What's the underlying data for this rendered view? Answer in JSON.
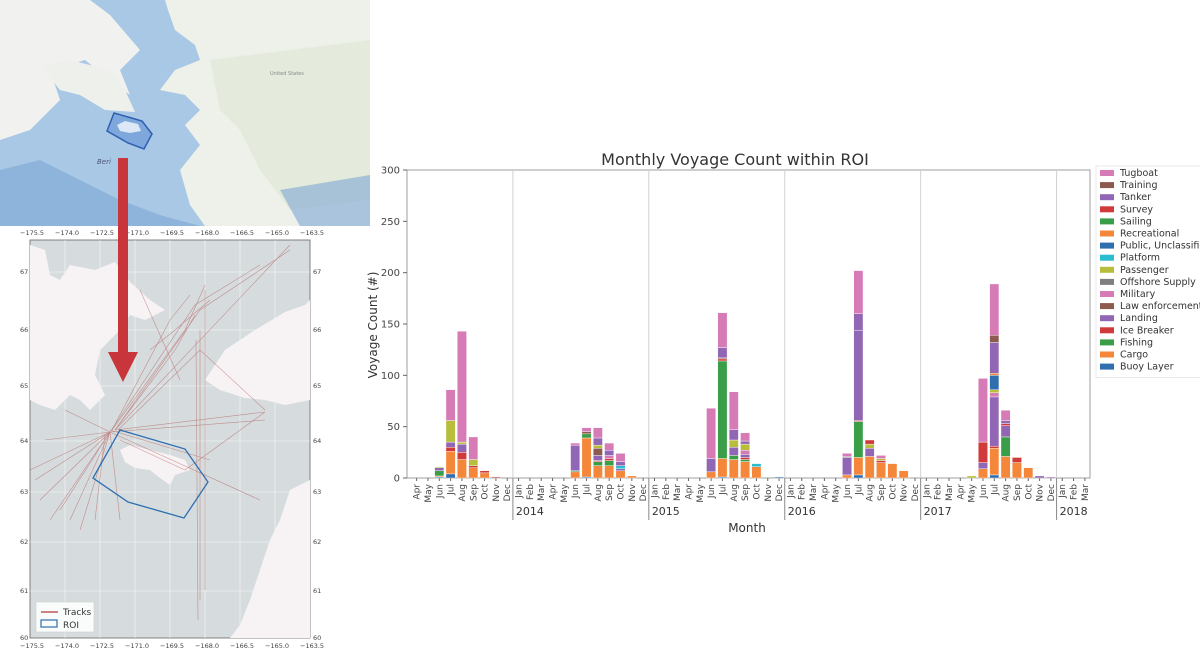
{
  "maps": {
    "top_map": {
      "labels": {
        "country": "United States",
        "sea": "Bering Sea"
      },
      "x_ticks": [
        "−175.5",
        "−174.0",
        "−172.5",
        "−171.0",
        "−169.5",
        "−168.0",
        "−166.5",
        "−165.0",
        "−163.5"
      ]
    },
    "track_map": {
      "x_ticks": [
        "−175.5",
        "−174.0",
        "−172.5",
        "−171.0",
        "−169.5",
        "−168.0",
        "−166.5",
        "−165.0",
        "−163.5"
      ],
      "y_ticks": [
        "67",
        "66",
        "65",
        "64",
        "63",
        "62",
        "61",
        "60"
      ],
      "legend": [
        {
          "label": "Tracks",
          "color": "#b03a3a",
          "kind": "line"
        },
        {
          "label": "ROI",
          "color": "#2e6fb0",
          "kind": "box"
        }
      ]
    },
    "arrow_color": "#c8353a"
  },
  "chart_data": {
    "type": "bar",
    "stacked": true,
    "title": "Monthly Voyage Count within ROI",
    "xlabel": "Month",
    "ylabel": "Voyage Count (#)",
    "ylim": [
      0,
      300
    ],
    "yticks": [
      0,
      50,
      100,
      150,
      200,
      250,
      300
    ],
    "grid": "vertical year separators",
    "legend_position": "right",
    "categories": [
      "Apr",
      "May",
      "Jun",
      "Jul",
      "Aug",
      "Sep",
      "Oct",
      "Nov",
      "Dec",
      "Jan",
      "Feb",
      "Mar",
      "Apr",
      "May",
      "Jun",
      "Jul",
      "Aug",
      "Sep",
      "Oct",
      "Nov",
      "Dec",
      "Jan",
      "Feb",
      "Mar",
      "Apr",
      "May",
      "Jun",
      "Jul",
      "Aug",
      "Sep",
      "Oct",
      "Nov",
      "Dec",
      "Jan",
      "Feb",
      "Mar",
      "Apr",
      "May",
      "Jun",
      "Jul",
      "Aug",
      "Sep",
      "Oct",
      "Nov",
      "Dec",
      "Jan",
      "Feb",
      "Mar",
      "Apr",
      "May",
      "Jun",
      "Jul",
      "Aug",
      "Sep",
      "Oct",
      "Nov",
      "Dec",
      "Jan",
      "Feb",
      "Mar"
    ],
    "year_labels": [
      {
        "label": "2014",
        "start_index": 9
      },
      {
        "label": "2015",
        "start_index": 21
      },
      {
        "label": "2016",
        "start_index": 33
      },
      {
        "label": "2017",
        "start_index": 45
      },
      {
        "label": "2018",
        "start_index": 57
      }
    ],
    "legend": [
      "Tugboat",
      "Training",
      "Tanker",
      "Survey",
      "Sailing",
      "Recreational",
      "Public, Unclassified",
      "Platform",
      "Passenger",
      "Offshore Supply",
      "Military",
      "Law enforcement",
      "Landing",
      "Ice Breaker",
      "Fishing",
      "Cargo",
      "Buoy Layer"
    ],
    "colors": {
      "Buoy Layer": "#2f6fad",
      "Cargo": "#f5873a",
      "Fishing": "#3a9d48",
      "Ice Breaker": "#d03a3a",
      "Landing": "#9167b5",
      "Law enforcement": "#8c5a4e",
      "Military": "#d67bb6",
      "Offshore Supply": "#7f7f7f",
      "Passenger": "#b8bd3c",
      "Platform": "#2bbcd0",
      "Public, Unclassified": "#2f6fad",
      "Recreational": "#f5873a",
      "Sailing": "#3a9d48",
      "Survey": "#d03a3a",
      "Tanker": "#9167b5",
      "Training": "#8c5a4e",
      "Tugboat": "#d67bb6"
    },
    "stack_order": [
      "Buoy Layer",
      "Cargo",
      "Fishing",
      "Ice Breaker",
      "Landing",
      "Law enforcement",
      "Military",
      "Offshore Supply",
      "Passenger",
      "Platform",
      "Public, Unclassified",
      "Recreational",
      "Sailing",
      "Survey",
      "Tanker",
      "Training",
      "Tugboat"
    ],
    "series": [
      {
        "name": "Buoy Layer",
        "values": [
          0,
          0,
          1,
          4,
          0,
          0,
          0,
          0,
          0,
          0,
          0,
          0,
          0,
          0,
          0,
          1,
          0,
          0,
          0,
          0,
          0,
          0,
          0,
          0,
          0,
          0,
          0,
          1,
          0,
          0,
          0,
          0,
          1,
          0,
          0,
          0,
          0,
          0,
          0,
          3,
          0,
          0,
          0,
          0,
          0,
          0,
          0,
          0,
          0,
          0,
          0,
          3,
          0,
          0,
          0,
          0,
          0,
          0,
          0,
          0
        ]
      },
      {
        "name": "Cargo",
        "values": [
          0,
          0,
          1,
          22,
          18,
          10,
          5,
          0,
          0,
          0,
          0,
          0,
          0,
          0,
          6,
          38,
          12,
          12,
          7,
          2,
          0,
          0,
          0,
          0,
          0,
          0,
          6,
          18,
          18,
          16,
          11,
          0,
          0,
          0,
          0,
          0,
          0,
          0,
          3,
          17,
          21,
          15,
          14,
          7,
          0,
          0,
          0,
          0,
          0,
          0,
          9,
          26,
          21,
          15,
          10,
          0,
          0,
          0,
          0,
          0
        ]
      },
      {
        "name": "Fishing",
        "values": [
          0,
          0,
          5,
          0,
          0,
          0,
          0,
          0,
          0,
          0,
          0,
          0,
          0,
          0,
          1,
          4,
          4,
          5,
          0,
          0,
          0,
          0,
          0,
          0,
          0,
          0,
          0,
          95,
          4,
          2,
          0,
          0,
          0,
          0,
          0,
          0,
          0,
          0,
          0,
          35,
          0,
          0,
          0,
          0,
          0,
          0,
          0,
          0,
          0,
          0,
          0,
          0,
          19,
          0,
          0,
          0,
          0,
          0,
          0,
          0
        ]
      },
      {
        "name": "Ice Breaker",
        "values": [
          0,
          0,
          0,
          4,
          7,
          2,
          2,
          1,
          0,
          0,
          0,
          0,
          0,
          0,
          0,
          0,
          1,
          2,
          0,
          0,
          0,
          0,
          0,
          0,
          0,
          0,
          0,
          2,
          0,
          2,
          0,
          0,
          0,
          0,
          0,
          0,
          0,
          0,
          0,
          1,
          0,
          2,
          0,
          0,
          0,
          0,
          0,
          0,
          0,
          0,
          0,
          2,
          0,
          0,
          0,
          0,
          0,
          0,
          0,
          0
        ]
      },
      {
        "name": "Landing",
        "values": [
          0,
          0,
          3,
          5,
          8,
          0,
          0,
          0,
          0,
          0,
          0,
          0,
          0,
          0,
          25,
          0,
          5,
          0,
          2,
          0,
          0,
          0,
          0,
          0,
          0,
          0,
          13,
          0,
          8,
          3,
          0,
          0,
          0,
          0,
          0,
          0,
          0,
          0,
          17,
          88,
          8,
          0,
          0,
          0,
          0,
          0,
          0,
          0,
          0,
          0,
          6,
          48,
          11,
          0,
          0,
          2,
          1,
          0,
          0,
          0
        ]
      },
      {
        "name": "Law enforcement",
        "values": [
          0,
          0,
          0,
          0,
          0,
          0,
          0,
          0,
          0,
          0,
          0,
          0,
          0,
          0,
          0,
          2,
          7,
          0,
          0,
          0,
          0,
          0,
          0,
          0,
          0,
          0,
          0,
          1,
          0,
          0,
          0,
          0,
          0,
          0,
          0,
          0,
          0,
          0,
          0,
          0,
          0,
          0,
          0,
          0,
          0,
          0,
          0,
          0,
          0,
          0,
          0,
          0,
          0,
          0,
          0,
          0,
          0,
          0,
          0,
          0
        ]
      },
      {
        "name": "Military",
        "values": [
          0,
          0,
          0,
          0,
          0,
          0,
          0,
          0,
          0,
          0,
          0,
          0,
          0,
          0,
          0,
          0,
          0,
          3,
          0,
          0,
          0,
          0,
          0,
          0,
          0,
          0,
          0,
          0,
          0,
          4,
          0,
          0,
          0,
          0,
          0,
          0,
          0,
          0,
          0,
          0,
          0,
          0,
          0,
          0,
          0,
          0,
          0,
          0,
          0,
          0,
          0,
          4,
          0,
          0,
          0,
          0,
          0,
          0,
          0,
          0
        ]
      },
      {
        "name": "Offshore Supply",
        "values": [
          0,
          0,
          0,
          0,
          0,
          0,
          0,
          0,
          0,
          0,
          0,
          0,
          0,
          0,
          0,
          0,
          0,
          0,
          0,
          0,
          0,
          0,
          0,
          0,
          0,
          0,
          0,
          0,
          0,
          0,
          0,
          0,
          0,
          0,
          0,
          0,
          0,
          0,
          1,
          0,
          0,
          0,
          0,
          0,
          0,
          0,
          0,
          0,
          0,
          0,
          0,
          0,
          0,
          0,
          0,
          0,
          0,
          0,
          0,
          0
        ]
      },
      {
        "name": "Passenger",
        "values": [
          0,
          0,
          1,
          21,
          2,
          6,
          0,
          0,
          0,
          0,
          0,
          0,
          0,
          0,
          0,
          0,
          3,
          0,
          0,
          0,
          0,
          0,
          0,
          0,
          0,
          0,
          0,
          0,
          7,
          6,
          0,
          0,
          0,
          0,
          0,
          0,
          0,
          0,
          0,
          0,
          4,
          2,
          0,
          0,
          0,
          0,
          0,
          0,
          0,
          2,
          0,
          3,
          0,
          0,
          0,
          0,
          0,
          0,
          0,
          0
        ]
      },
      {
        "name": "Platform",
        "values": [
          0,
          0,
          0,
          0,
          0,
          0,
          0,
          0,
          0,
          0,
          0,
          0,
          0,
          0,
          0,
          0,
          0,
          0,
          3,
          0,
          0,
          0,
          0,
          0,
          0,
          0,
          0,
          0,
          0,
          0,
          3,
          0,
          0,
          0,
          0,
          0,
          0,
          0,
          0,
          0,
          0,
          0,
          0,
          0,
          0,
          0,
          0,
          0,
          0,
          0,
          0,
          0,
          0,
          0,
          0,
          0,
          0,
          0,
          0,
          0
        ]
      },
      {
        "name": "Public, Unclassified",
        "values": [
          0,
          0,
          0,
          0,
          0,
          0,
          0,
          0,
          0,
          0,
          0,
          0,
          0,
          0,
          0,
          0,
          0,
          0,
          0,
          0,
          0,
          0,
          0,
          0,
          0,
          0,
          0,
          0,
          0,
          0,
          0,
          0,
          0,
          0,
          0,
          0,
          0,
          0,
          0,
          0,
          0,
          0,
          0,
          0,
          0,
          0,
          0,
          0,
          0,
          0,
          0,
          14,
          0,
          0,
          0,
          0,
          0,
          0,
          0,
          0
        ]
      },
      {
        "name": "Recreational",
        "values": [
          0,
          0,
          0,
          0,
          0,
          0,
          0,
          0,
          0,
          0,
          0,
          0,
          0,
          0,
          0,
          0,
          0,
          0,
          0,
          0,
          0,
          0,
          0,
          0,
          0,
          0,
          0,
          0,
          0,
          0,
          0,
          0,
          0,
          0,
          0,
          0,
          0,
          0,
          0,
          0,
          0,
          0,
          0,
          0,
          0,
          0,
          0,
          0,
          0,
          0,
          0,
          2,
          0,
          0,
          0,
          0,
          0,
          0,
          0,
          0
        ]
      },
      {
        "name": "Sailing",
        "values": [
          0,
          0,
          0,
          0,
          0,
          0,
          0,
          0,
          0,
          0,
          0,
          0,
          0,
          0,
          0,
          0,
          0,
          0,
          0,
          0,
          0,
          0,
          0,
          0,
          0,
          0,
          0,
          0,
          0,
          0,
          0,
          0,
          0,
          0,
          0,
          0,
          0,
          0,
          0,
          0,
          0,
          0,
          0,
          0,
          0,
          0,
          0,
          0,
          0,
          0,
          0,
          0,
          0,
          0,
          0,
          0,
          0,
          0,
          0,
          0
        ]
      },
      {
        "name": "Survey",
        "values": [
          0,
          0,
          0,
          0,
          0,
          0,
          0,
          0,
          0,
          0,
          0,
          0,
          0,
          0,
          0,
          0,
          0,
          0,
          0,
          0,
          0,
          0,
          0,
          0,
          0,
          0,
          0,
          0,
          0,
          0,
          0,
          0,
          0,
          0,
          0,
          0,
          0,
          0,
          0,
          0,
          4,
          0,
          0,
          0,
          0,
          0,
          0,
          0,
          0,
          0,
          20,
          0,
          2,
          5,
          0,
          0,
          0,
          0,
          0,
          0
        ]
      },
      {
        "name": "Tanker",
        "values": [
          0,
          0,
          0,
          0,
          0,
          0,
          0,
          0,
          0,
          0,
          0,
          0,
          0,
          0,
          0,
          0,
          7,
          5,
          4,
          0,
          0,
          0,
          0,
          0,
          0,
          0,
          0,
          10,
          10,
          3,
          0,
          0,
          0,
          0,
          0,
          0,
          0,
          0,
          0,
          16,
          0,
          0,
          0,
          0,
          0,
          0,
          0,
          0,
          0,
          0,
          0,
          30,
          3,
          0,
          0,
          0,
          0,
          0,
          0,
          0
        ]
      },
      {
        "name": "Training",
        "values": [
          0,
          0,
          0,
          0,
          0,
          0,
          0,
          0,
          0,
          0,
          0,
          0,
          0,
          0,
          0,
          0,
          0,
          0,
          0,
          0,
          0,
          0,
          0,
          0,
          0,
          0,
          0,
          0,
          0,
          0,
          0,
          0,
          0,
          0,
          0,
          0,
          0,
          0,
          0,
          0,
          0,
          0,
          0,
          0,
          0,
          0,
          0,
          0,
          0,
          0,
          0,
          7,
          0,
          0,
          0,
          0,
          0,
          0,
          0,
          0
        ]
      },
      {
        "name": "Tugboat",
        "values": [
          0,
          0,
          0,
          30,
          108,
          22,
          0,
          0,
          0,
          0,
          0,
          0,
          0,
          0,
          2,
          4,
          10,
          7,
          8,
          0,
          0,
          0,
          0,
          0,
          0,
          0,
          49,
          34,
          37,
          8,
          0,
          0,
          0,
          0,
          0,
          0,
          0,
          0,
          3,
          42,
          0,
          3,
          0,
          0,
          0,
          0,
          0,
          0,
          0,
          0,
          62,
          50,
          10,
          0,
          0,
          0,
          0,
          0,
          0,
          0
        ]
      }
    ]
  }
}
